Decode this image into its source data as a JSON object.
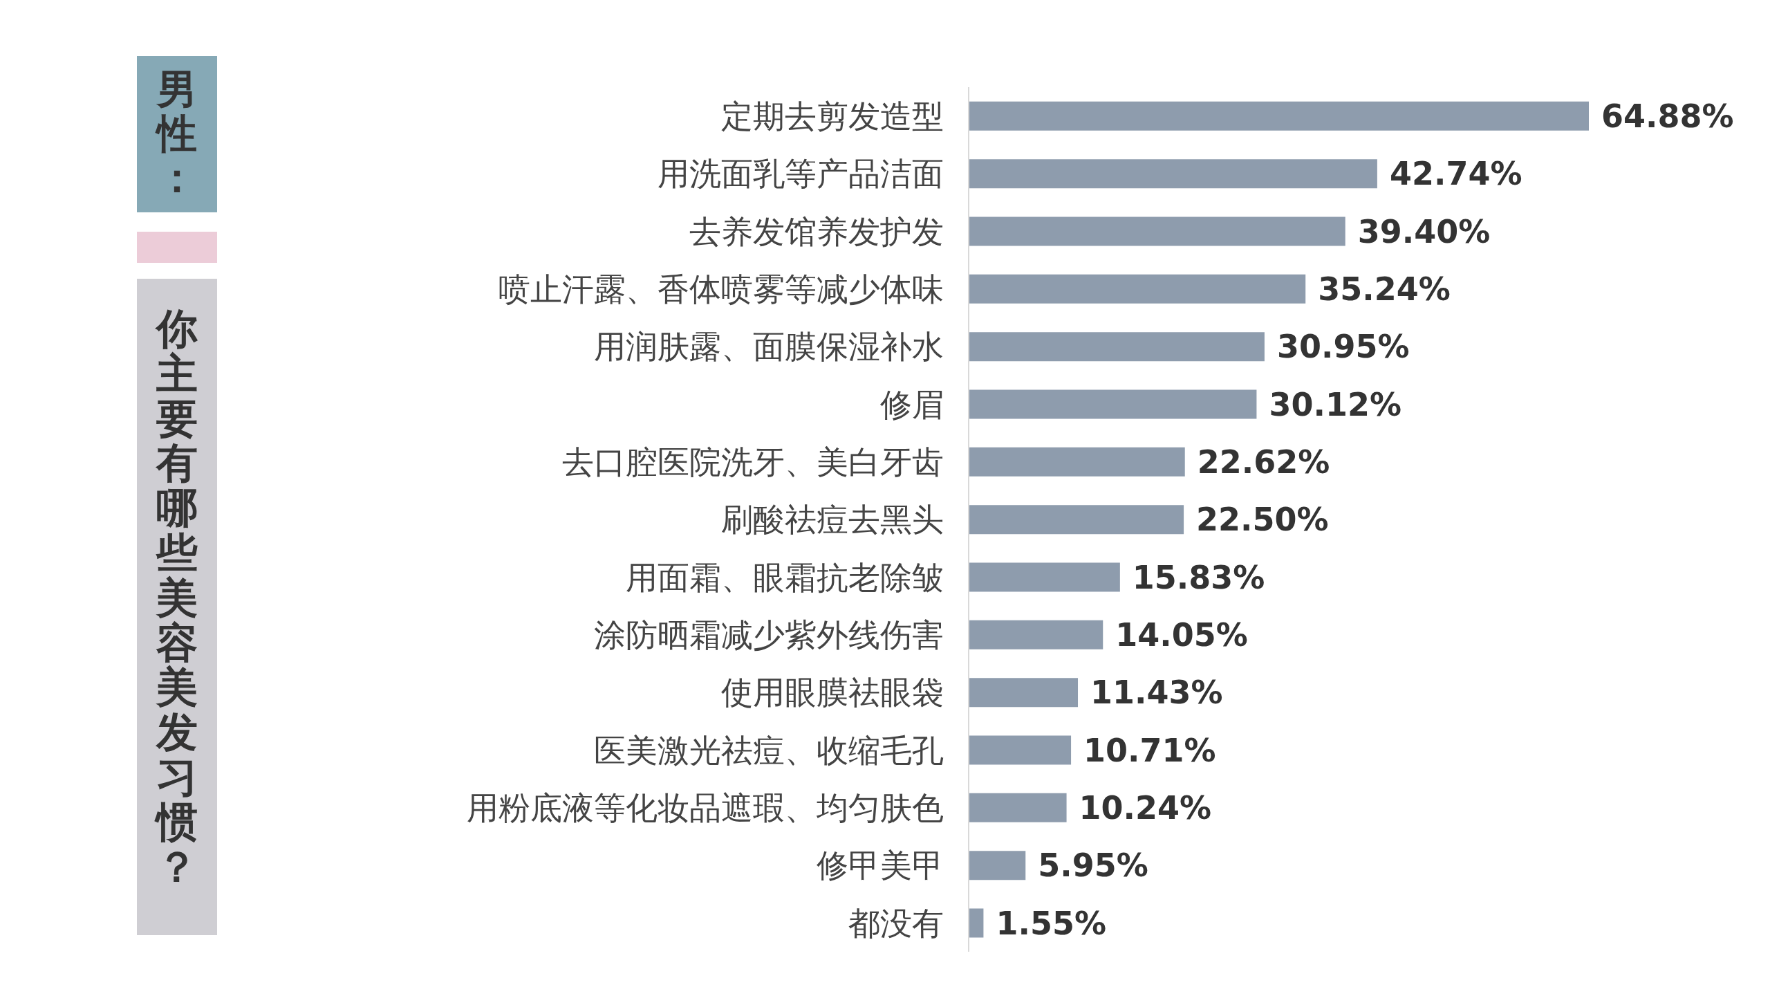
{
  "chart_data": {
    "type": "bar",
    "orientation": "horizontal",
    "title": "男性：",
    "subtitle": "你主要有哪些美容美发习惯？",
    "categories": [
      "定期去剪发造型",
      "用洗面乳等产品洁面",
      "去养发馆养发护发",
      "喷止汗露、香体喷雾等减少体味",
      "用润肤露、面膜保湿补水",
      "修眉",
      "去口腔医院洗牙、美白牙齿",
      "刷酸祛痘去黑头",
      "用面霜、眼霜抗老除皱",
      "涂防晒霜减少紫外线伤害",
      "使用眼膜祛眼袋",
      "医美激光祛痘、收缩毛孔",
      "用粉底液等化妆品遮瑕、均匀肤色",
      "修甲美甲",
      "都没有"
    ],
    "values": [
      64.88,
      42.74,
      39.4,
      35.24,
      30.95,
      30.12,
      22.62,
      22.5,
      15.83,
      14.05,
      11.43,
      10.71,
      10.24,
      5.95,
      1.55
    ],
    "value_labels": [
      "64.88%",
      "42.74%",
      "39.40%",
      "35.24%",
      "30.95%",
      "30.12%",
      "22.62%",
      "22.50%",
      "15.83%",
      "14.05%",
      "11.43%",
      "10.71%",
      "10.24%",
      "5.95%",
      "1.55%"
    ],
    "color": "#8e9cad"
  }
}
